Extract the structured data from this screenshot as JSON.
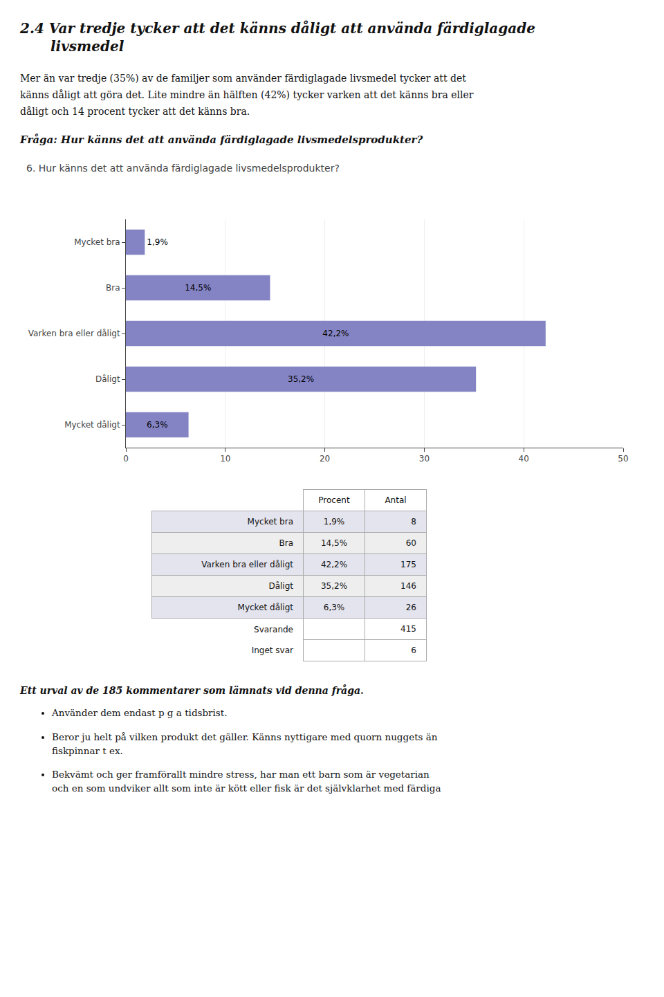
{
  "page": {
    "title": [
      "2.4  Var tredje tycker att det känns dåligt att använda färdiglagade",
      "livsmedel"
    ],
    "body_text": "Mer än var tredje (35%) av de familjer som använder färdiglagade livsmedel tycker att det\nkänns dåligt att göra det. Lite mindre än hälften (42%) tycker varken att det känns bra eller\ndåligt och 14 procent tycker att det känns bra.",
    "question": "Fråga: Hur känns det att använda färdiglagade livsmedelsprodukter?",
    "table": {
      "columns": [
        "Procent",
        "Antal"
      ],
      "rows": [
        [
          "Mycket bra",
          "1,9%",
          8
        ],
        [
          "Bra",
          "14,5%",
          60
        ],
        [
          "Varken bra eller dåligt",
          "42,2%",
          175
        ],
        [
          "Dåligt",
          "35,2%",
          146
        ],
        [
          "Mycket dåligt",
          "6,3%",
          26
        ]
      ],
      "extra_rows": [
        [
          "Svarande",
          415
        ],
        [
          "Inget svar",
          6
        ]
      ]
    },
    "comment_heading": "Ett urval av de 185 kommentarer som lämnats vid denna fråga.",
    "bullets": [
      "Använder dem endast p g a tidsbrist.",
      "Beror ju helt på vilken produkt det gäller. Känns nyttigare med quorn nuggets än\nfiskpinnar t ex.",
      "Bekvämt och ger framförallt mindre stress, har man ett barn som är vegetarian\noch en som undviker allt som inte är kött eller fisk är det självklarhet med färdiga"
    ]
  },
  "chart_data": {
    "type": "bar",
    "orientation": "horizontal",
    "title": "6. Hur känns det att använda färdiglagade livsmedelsprodukter?",
    "categories": [
      "Mycket bra",
      "Bra",
      "Varken bra eller dåligt",
      "Dåligt",
      "Mycket dåligt"
    ],
    "values": [
      1.9,
      14.5,
      42.2,
      35.2,
      6.3
    ],
    "value_labels": [
      "1,9%",
      "14,5%",
      "42,2%",
      "35,2%",
      "6,3%"
    ],
    "data_labels": true,
    "color": "#8484c4",
    "xlim": [
      0,
      50
    ],
    "xticks": [
      0,
      10,
      20,
      30,
      40,
      50
    ],
    "grid": true
  }
}
